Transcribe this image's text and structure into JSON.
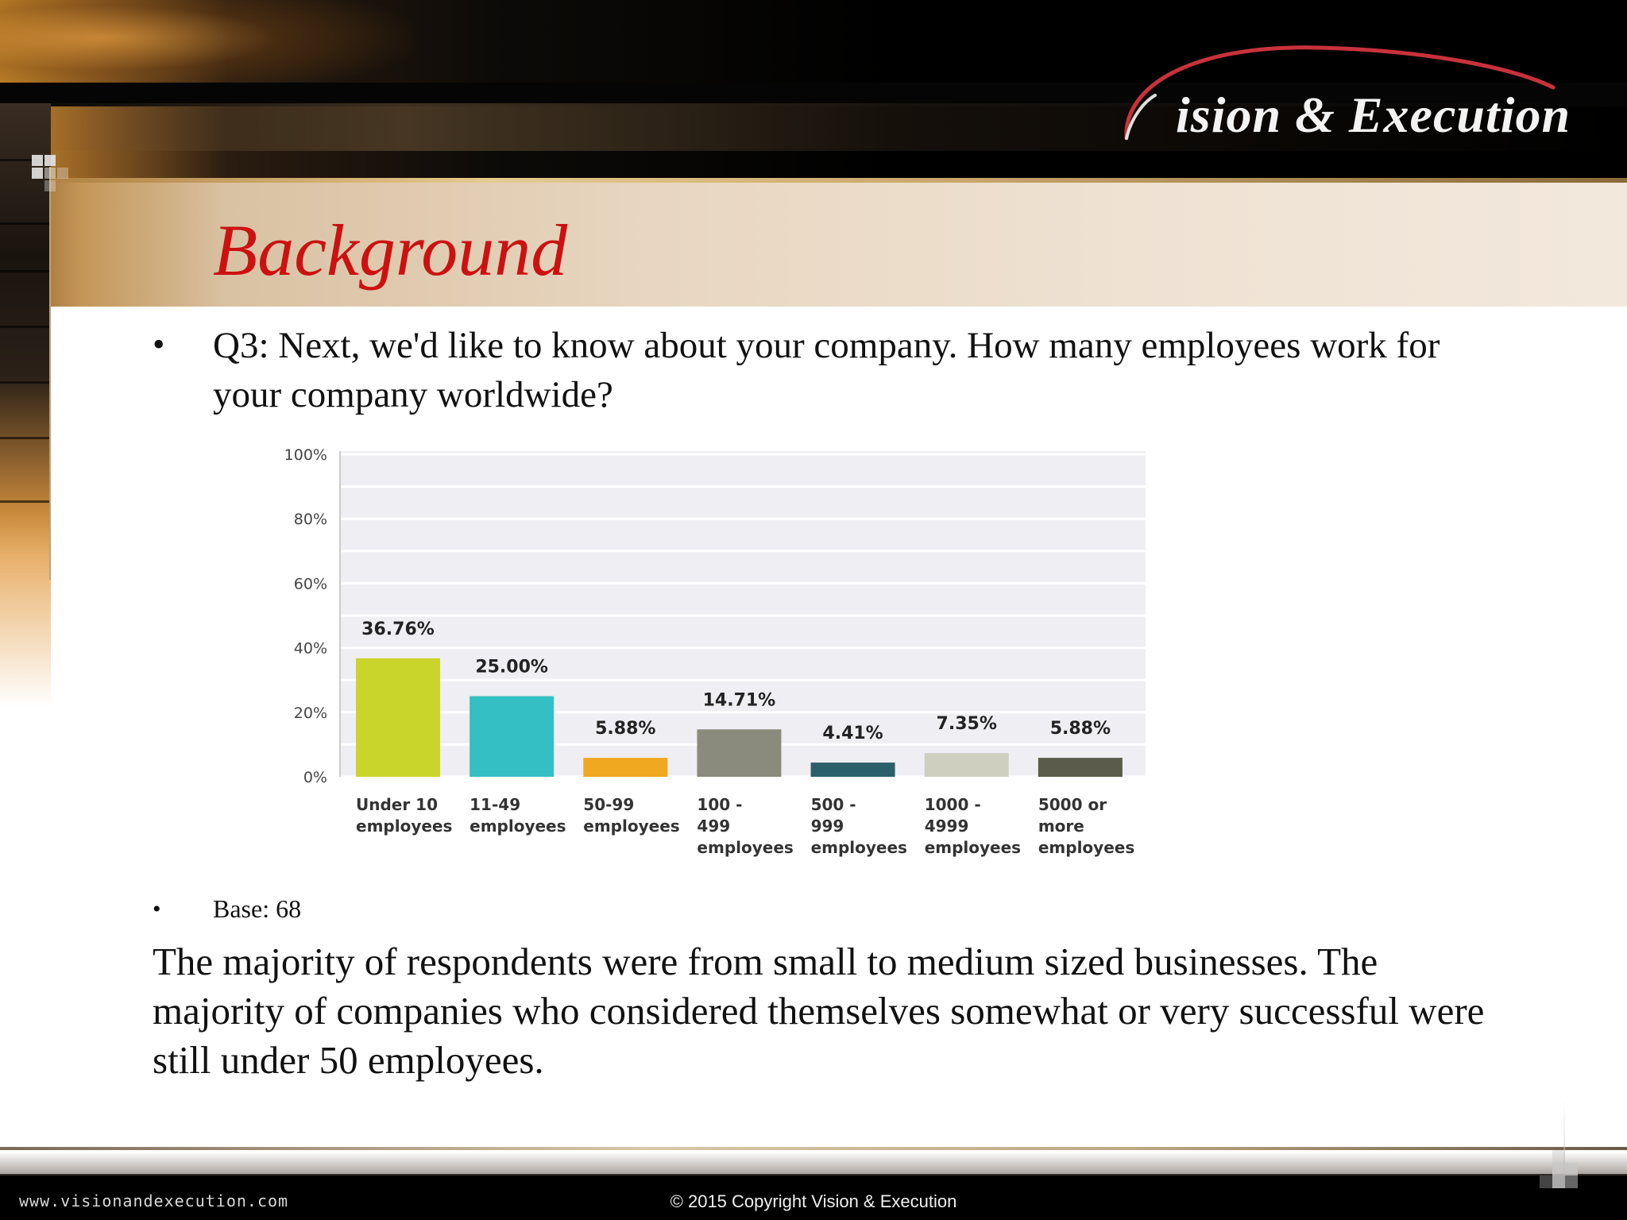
{
  "logo": {
    "text": "ision & Execution",
    "full_name": "Vision & Execution"
  },
  "slide": {
    "title": "Background",
    "question": "Q3: Next, we'd like to know about your company.   How many employees work for your company worldwide?",
    "bullet_symbol": "•",
    "base": "Base: 68",
    "summary": "The majority of respondents were from small to medium sized businesses.  The majority of companies who considered themselves somewhat or very successful were still under 50 employees."
  },
  "footer": {
    "url": "www.visionandexecution.com",
    "copyright": "© 2015 Copyright Vision & Execution"
  },
  "colors": {
    "title_red": "#cc1111",
    "chart_plot_bg": "#efeef3",
    "bar_colors": [
      "#cad52c",
      "#33bfc3",
      "#f0a820",
      "#8a8b7c",
      "#2c5f6c",
      "#cfcfc0",
      "#5a5b4a"
    ]
  },
  "chart_data": {
    "type": "bar",
    "categories": [
      [
        "Under 10",
        "employees"
      ],
      [
        "11-49",
        "employees"
      ],
      [
        "50-99",
        "employees"
      ],
      [
        "100 -",
        "499",
        "employees"
      ],
      [
        "500 -",
        "999",
        "employees"
      ],
      [
        "1000 -",
        "4999",
        "employees"
      ],
      [
        "5000 or",
        "more",
        "employees"
      ]
    ],
    "values": [
      36.76,
      25.0,
      5.88,
      14.71,
      4.41,
      7.35,
      5.88
    ],
    "value_labels": [
      "36.76%",
      "25.00%",
      "5.88%",
      "14.71%",
      "4.41%",
      "7.35%",
      "5.88%"
    ],
    "y_ticks": [
      "0%",
      "20%",
      "40%",
      "60%",
      "80%",
      "100%"
    ],
    "ylim": [
      0,
      100
    ],
    "grid": true,
    "legend": "none"
  }
}
